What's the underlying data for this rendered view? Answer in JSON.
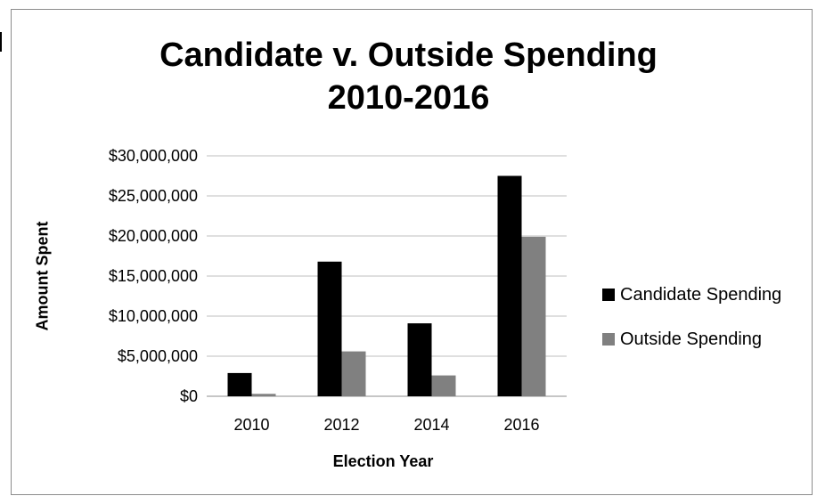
{
  "chart_data": {
    "type": "bar",
    "title": "Candidate v. Outside Spending 2010-2016",
    "title_lines": [
      "Candidate v. Outside Spending",
      "2010-2016"
    ],
    "xlabel": "Election Year",
    "ylabel": "Amount Spent",
    "categories": [
      "2010",
      "2012",
      "2014",
      "2016"
    ],
    "series": [
      {
        "name": "Candidate Spending",
        "color": "#000000",
        "values": [
          2900000,
          16800000,
          9100000,
          27500000
        ]
      },
      {
        "name": "Outside Spending",
        "color": "#808080",
        "values": [
          300000,
          5600000,
          2600000,
          19900000
        ]
      }
    ],
    "ylim": [
      0,
      30000000
    ],
    "yticks": [
      0,
      5000000,
      10000000,
      15000000,
      20000000,
      25000000,
      30000000
    ],
    "ytick_labels": [
      "$0",
      "$5,000,000",
      "$10,000,000",
      "$15,000,000",
      "$20,000,000",
      "$25,000,000",
      "$30,000,000"
    ],
    "grid": true,
    "legend_position": "right"
  }
}
